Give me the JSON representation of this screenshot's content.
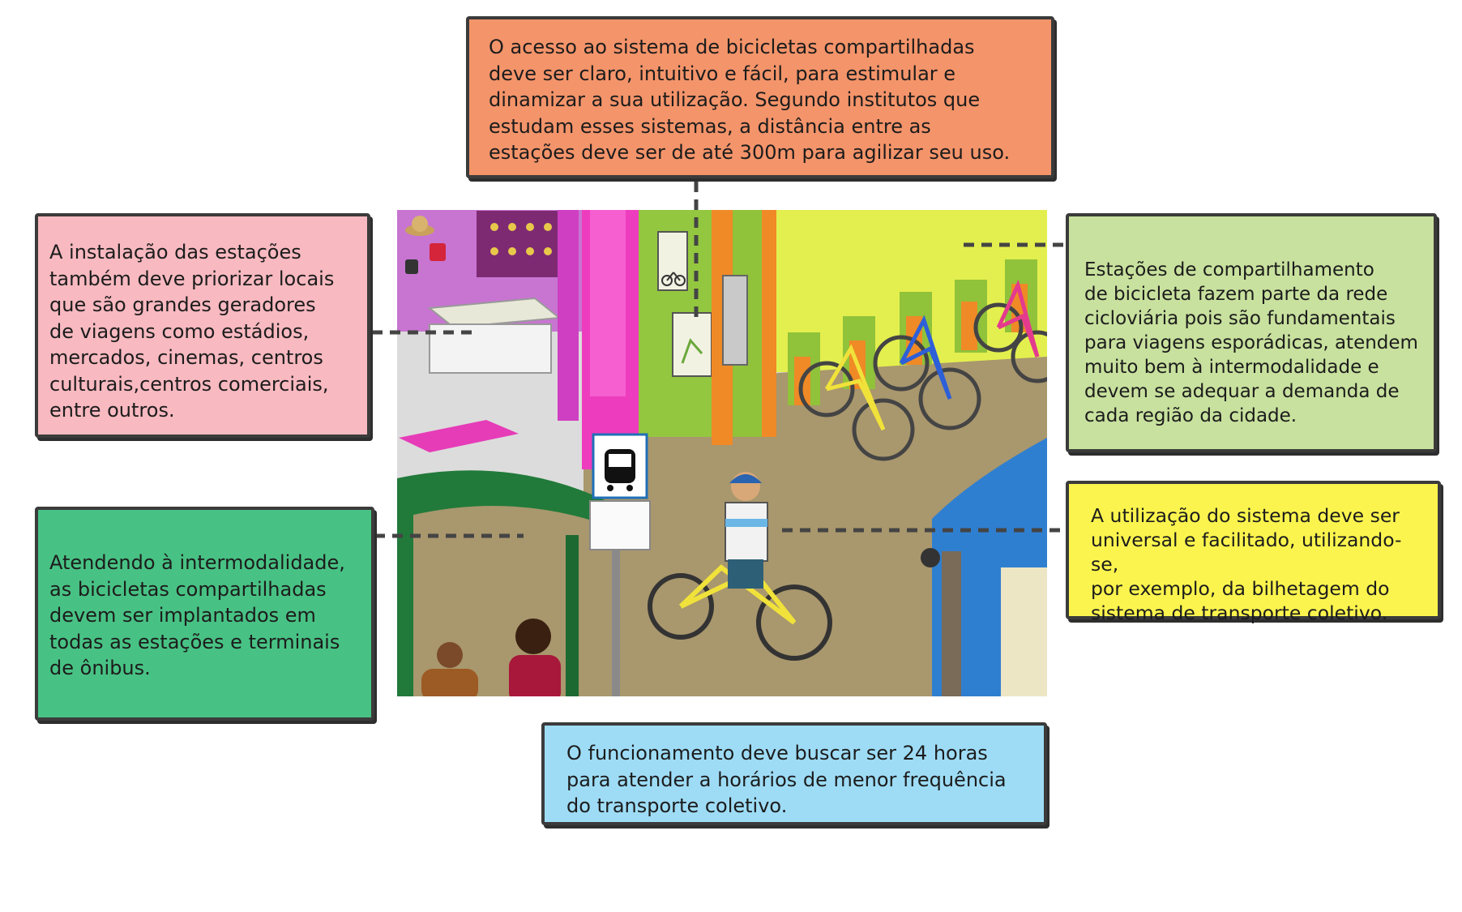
{
  "callouts": {
    "top": "O acesso ao sistema de bicicletas compartilhadas\ndeve ser claro, intuitivo e fácil, para estimular e\ndinamizar a sua utilização. Segundo institutos que\nestudam esses sistemas, a distância entre as\nestações deve ser de até 300m para agilizar seu uso.",
    "left_pink": "A instalação das estações\ntambém deve priorizar locais\n que são grandes geradores\nde viagens como estádios,\nmercados, cinemas, centros\nculturais,centros comerciais,\nentre outros.",
    "left_green": "Atendendo à intermodalidade,\nas bicicletas compartilhadas\ndevem ser implantados em\ntodas as estações e terminais\nde ônibus.",
    "right_green": "Estações de compartilhamento\nde bicicleta fazem parte da rede\ncicloviária pois são fundamentais\npara viagens esporádicas, atendem\nmuito bem à intermodalidade e\ndevem se adequar a demanda de\ncada região da cidade.",
    "right_yellow": "A utilização do sistema deve ser\nuniversal e facilitado, utilizando-se,\npor exemplo, da bilhetagem do\nsistema de transporte coletivo.",
    "bottom": "O funcionamento deve buscar ser 24 horas\npara atender a horários de menor frequência\ndo transporte coletivo."
  },
  "colors": {
    "orange": "#f4946a",
    "pink": "#f8b9c0",
    "green": "#48c284",
    "light_green": "#c8e19e",
    "yellow": "#fbf44e",
    "light_blue": "#9edcf6",
    "border": "#3b3b3b"
  },
  "illustration": {
    "icons": [
      "hat-icon",
      "handbag-icon",
      "bicycle-icon",
      "bus-icon",
      "map-icon"
    ]
  }
}
